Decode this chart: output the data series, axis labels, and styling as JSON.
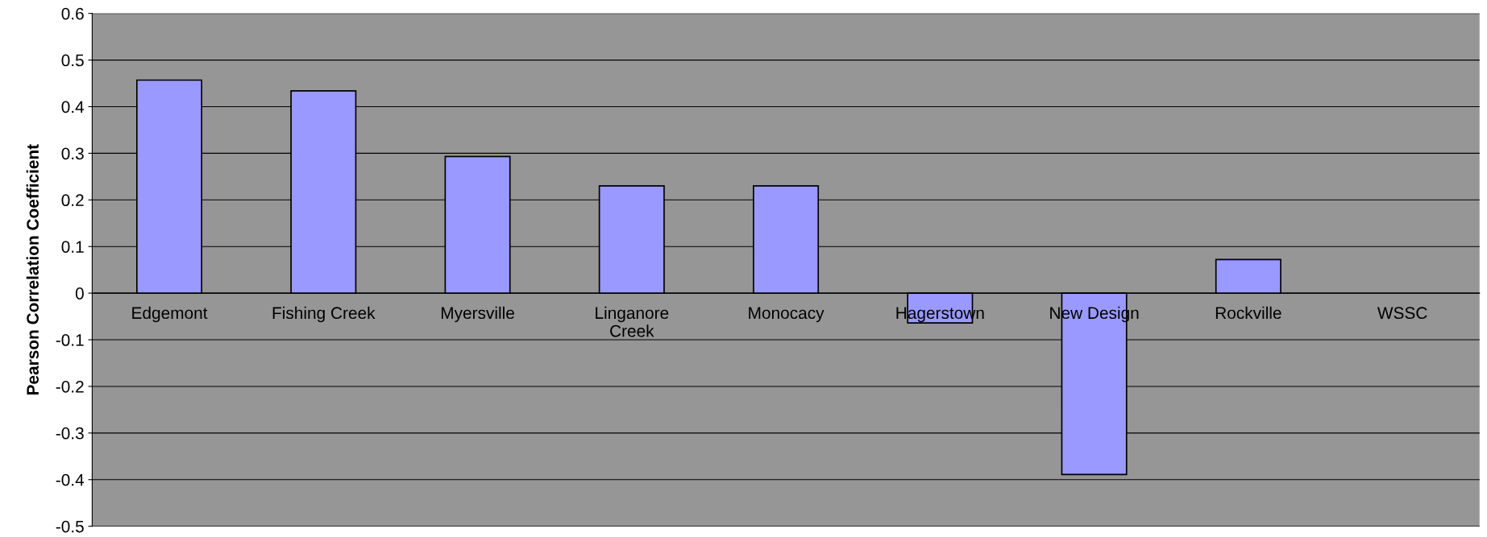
{
  "chart_data": {
    "type": "bar",
    "ylabel": "Pearson Correlation Coefficient",
    "categories": [
      "Edgemont",
      "Fishing Creek",
      "Myersville",
      "Linganore\nCreek",
      "Monocacy",
      "Hagerstown",
      "New Design",
      "Rockville",
      "WSSC"
    ],
    "values": [
      0.457,
      0.434,
      0.293,
      0.23,
      0.23,
      -0.064,
      -0.389,
      0.072,
      null
    ],
    "color": "#9999ff",
    "ylim": [
      -0.5,
      0.6
    ],
    "yticks": [
      -0.5,
      -0.4,
      -0.3,
      -0.2,
      -0.1,
      0,
      0.1,
      0.2,
      0.3,
      0.4,
      0.5,
      0.6
    ],
    "grid": "y",
    "legend": false
  }
}
